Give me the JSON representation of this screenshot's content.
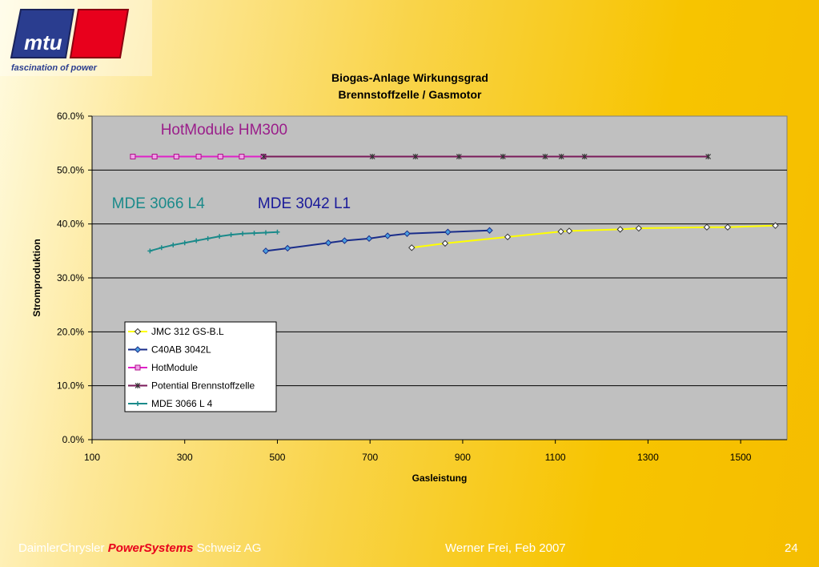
{
  "logo": {
    "text": "mtu",
    "tagline": "fascination of power"
  },
  "footer": {
    "company_prefix": "DaimlerChrysler",
    "company_brand": "PowerSystems",
    "company_suffix": "Schweiz AG",
    "author_date": "Werner Frei,  Feb  2007",
    "page_number": "24"
  },
  "colors": {
    "plot_bg": "#c0c0c0",
    "accent_red": "#e8001c",
    "logo_blue": "#2a3d8f"
  },
  "chart_data": {
    "type": "scatter",
    "title": [
      "Biogas-Anlage Wirkungsgrad",
      "Brennstoffzelle / Gasmotor"
    ],
    "xlabel": "Gasleistung",
    "ylabel": "Stromproduktion",
    "xlim": [
      100,
      1600
    ],
    "ylim": [
      0,
      60
    ],
    "x_ticks": [
      100,
      300,
      500,
      700,
      900,
      1100,
      1300,
      1500
    ],
    "y_ticks": [
      "0.0%",
      "10.0%",
      "20.0%",
      "30.0%",
      "40.0%",
      "50.0%",
      "60.0%"
    ],
    "grid": "horizontal",
    "legend_placement": "lower-left",
    "series": [
      {
        "name": "JMC 312 GS-B.L",
        "color": "#ffff00",
        "marker": "diamond-open",
        "x": [
          790,
          862,
          997,
          1112,
          1130,
          1240,
          1280,
          1427,
          1472,
          1575
        ],
        "y": [
          35.6,
          36.4,
          37.6,
          38.6,
          38.7,
          39.0,
          39.2,
          39.4,
          39.4,
          39.7
        ]
      },
      {
        "name": "C40AB 3042L",
        "color": "#1a2d8a",
        "marker": "diamond-filled",
        "x": [
          475,
          522,
          610,
          645,
          698,
          738,
          780,
          868,
          958
        ],
        "y": [
          35.0,
          35.5,
          36.5,
          36.9,
          37.3,
          37.8,
          38.2,
          38.5,
          38.8
        ]
      },
      {
        "name": "HotModule",
        "color": "#e020c8",
        "marker": "square",
        "x": [
          188,
          235,
          282,
          330,
          377,
          423,
          470
        ],
        "y": [
          52.5,
          52.5,
          52.5,
          52.5,
          52.5,
          52.5,
          52.5
        ]
      },
      {
        "name": "Potential Brennstoffzelle",
        "color": "#7a1a5a",
        "marker": "star",
        "x": [
          470,
          705,
          798,
          892,
          987,
          1078,
          1113,
          1163,
          1430
        ],
        "y": [
          52.5,
          52.5,
          52.5,
          52.5,
          52.5,
          52.5,
          52.5,
          52.5,
          52.5
        ]
      },
      {
        "name": "MDE 3066 L 4",
        "color": "#1a8a8a",
        "marker": "plus",
        "x": [
          225,
          250,
          275,
          300,
          325,
          350,
          375,
          400,
          425,
          450,
          475,
          500
        ],
        "y": [
          35.0,
          35.6,
          36.1,
          36.5,
          36.9,
          37.3,
          37.7,
          38.0,
          38.2,
          38.3,
          38.4,
          38.5
        ]
      }
    ],
    "annotations": [
      {
        "text": "HotModule HM300",
        "x": 385,
        "y": 57.5,
        "color": "#9a1e8a"
      },
      {
        "text": "MDE 3066 L4",
        "x": 243,
        "y": 43.8,
        "color": "#1a8a8a"
      },
      {
        "text": "MDE 3042 L1",
        "x": 558,
        "y": 43.8,
        "color": "#1a1a9a"
      }
    ]
  }
}
